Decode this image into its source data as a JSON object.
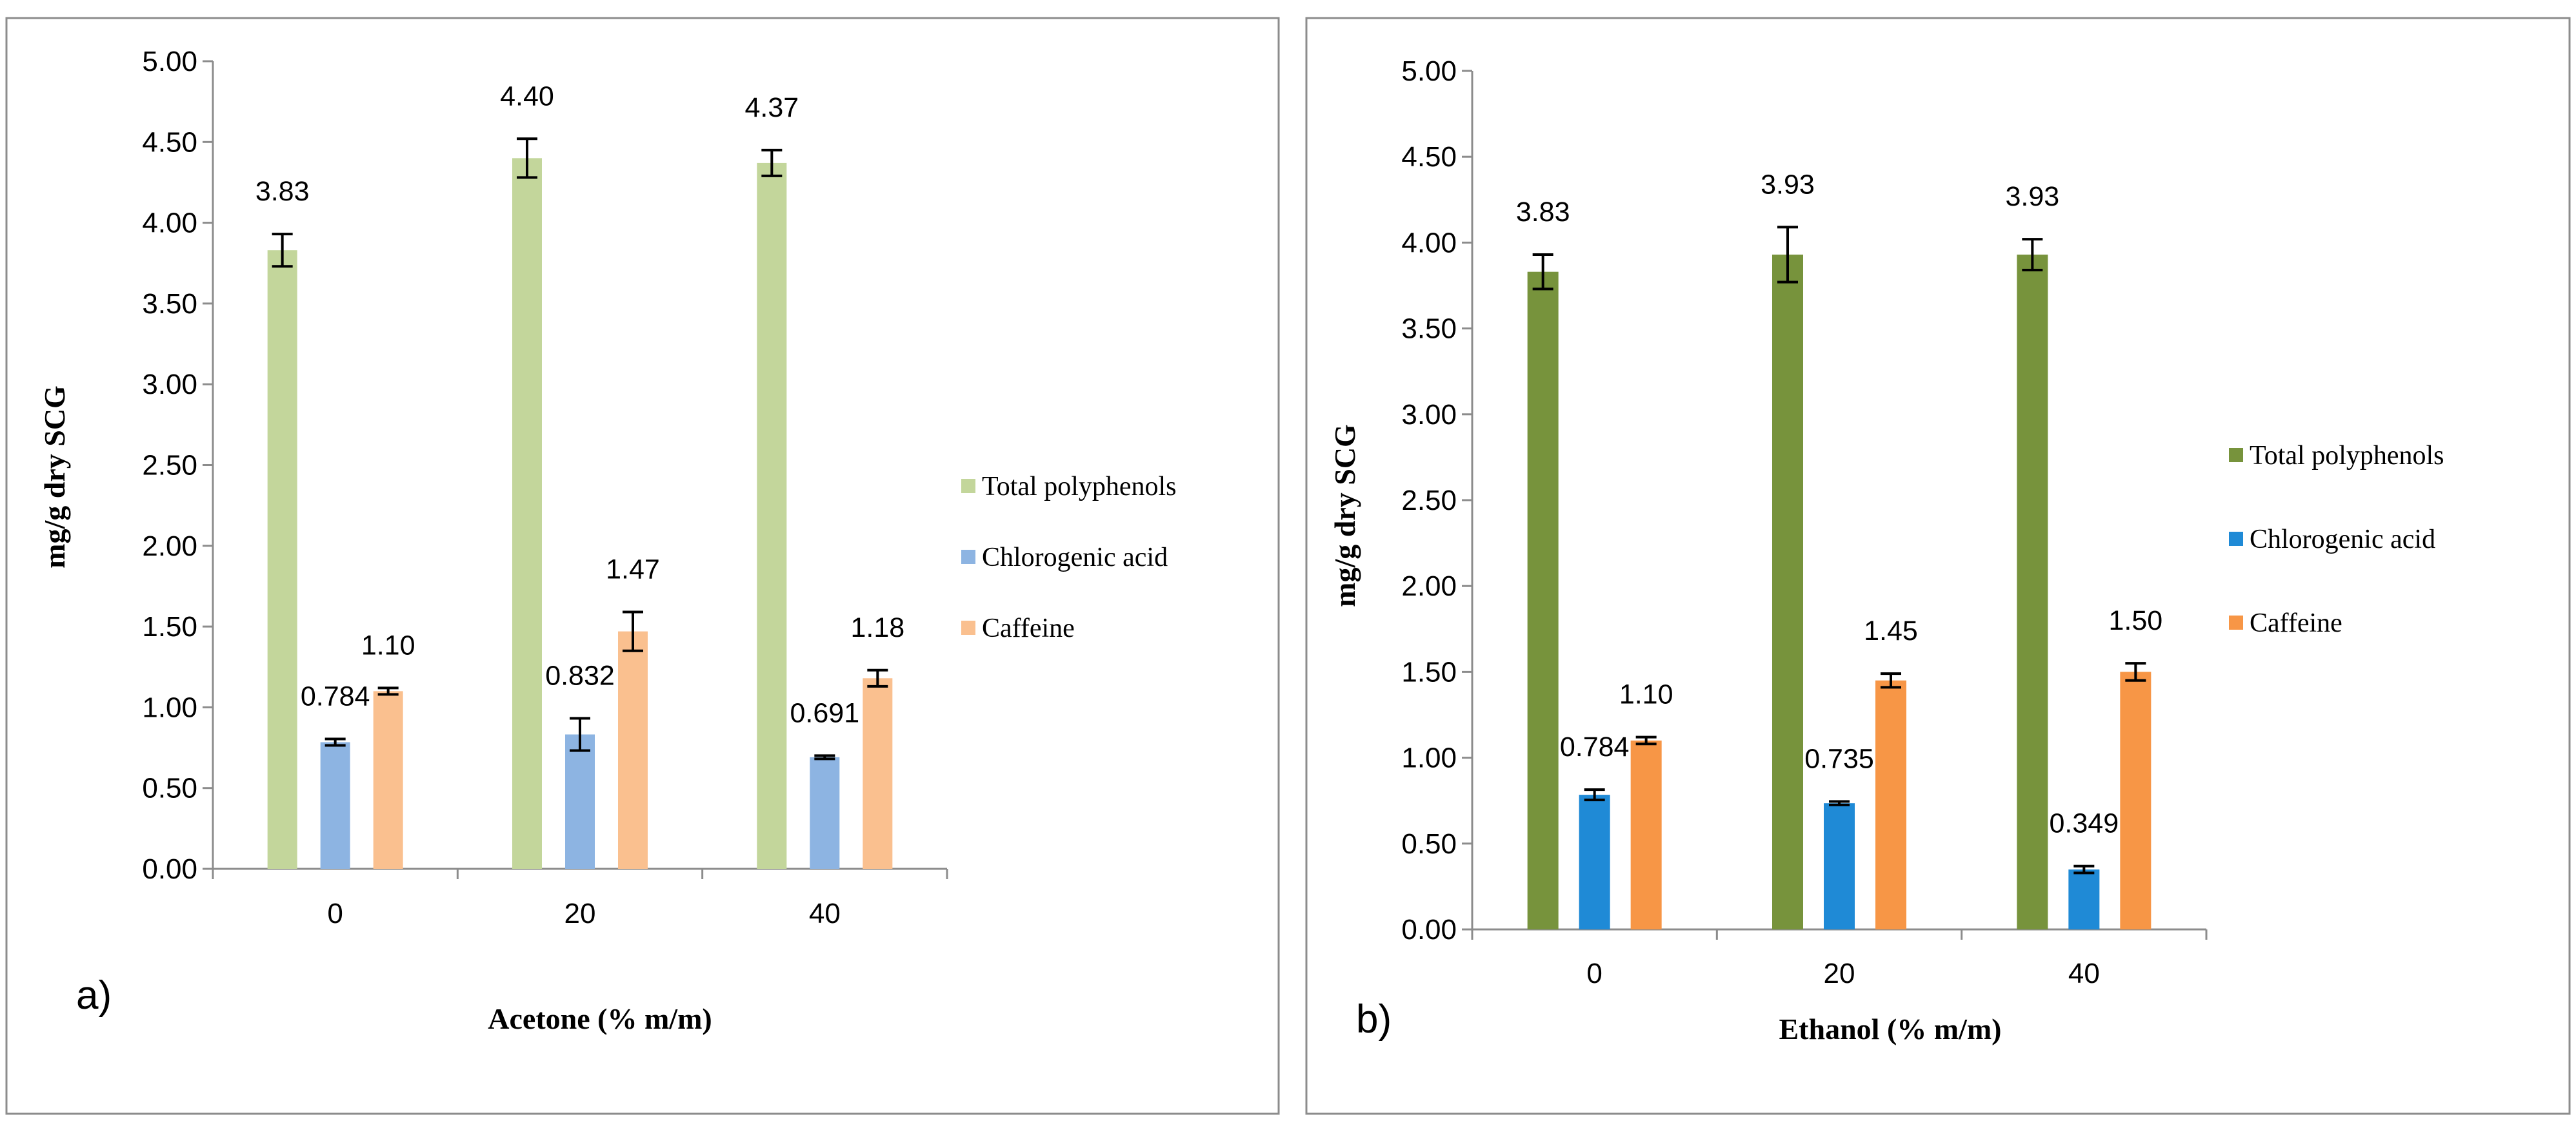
{
  "chart_data": [
    {
      "type": "bar",
      "panel_label": "a)",
      "xlabel": "Acetone (% m/m)",
      "ylabel": "mg/g  dry SCG",
      "ylim": [
        0,
        5
      ],
      "yticks": [
        "0.00",
        "0.50",
        "1.00",
        "1.50",
        "2.00",
        "2.50",
        "3.00",
        "3.50",
        "4.00",
        "4.50",
        "5.00"
      ],
      "categories": [
        "0",
        "20",
        "40"
      ],
      "legend_position": "right",
      "series": [
        {
          "name": "Total polyphenols",
          "color": "#c3d69b",
          "values": [
            3.83,
            4.4,
            4.37
          ],
          "labels": [
            "3.83",
            "4.40",
            "4.37"
          ],
          "errors": [
            0.1,
            0.12,
            0.08
          ]
        },
        {
          "name": "Chlorogenic acid",
          "color": "#8db4e2",
          "values": [
            0.784,
            0.832,
            0.691
          ],
          "labels": [
            "0.784",
            "0.832",
            "0.691"
          ],
          "errors": [
            0.02,
            0.1,
            0.01
          ]
        },
        {
          "name": "Caffeine",
          "color": "#fac08f",
          "values": [
            1.1,
            1.47,
            1.18
          ],
          "labels": [
            "1.10",
            "1.47",
            "1.18"
          ],
          "errors": [
            0.02,
            0.12,
            0.05
          ]
        }
      ]
    },
    {
      "type": "bar",
      "panel_label": "b)",
      "xlabel": "Ethanol (% m/m)",
      "ylabel": "mg/g dry SCG",
      "ylim": [
        0,
        5
      ],
      "yticks": [
        "0.00",
        "0.50",
        "1.00",
        "1.50",
        "2.00",
        "2.50",
        "3.00",
        "3.50",
        "4.00",
        "4.50",
        "5.00"
      ],
      "categories": [
        "0",
        "20",
        "40"
      ],
      "legend_position": "right",
      "series": [
        {
          "name": "Total polyphenols",
          "color": "#77933c",
          "values": [
            3.83,
            3.93,
            3.93
          ],
          "labels": [
            "3.83",
            "3.93",
            "3.93"
          ],
          "errors": [
            0.1,
            0.16,
            0.09
          ]
        },
        {
          "name": "Chlorogenic acid",
          "color": "#1f8ad6",
          "values": [
            0.784,
            0.735,
            0.349
          ],
          "labels": [
            "0.784",
            "0.735",
            "0.349"
          ],
          "errors": [
            0.03,
            0.01,
            0.02
          ]
        },
        {
          "name": "Caffeine",
          "color": "#f79646",
          "values": [
            1.1,
            1.45,
            1.5
          ],
          "labels": [
            "1.10",
            "1.45",
            "1.50"
          ],
          "errors": [
            0.02,
            0.04,
            0.05
          ]
        }
      ]
    }
  ]
}
